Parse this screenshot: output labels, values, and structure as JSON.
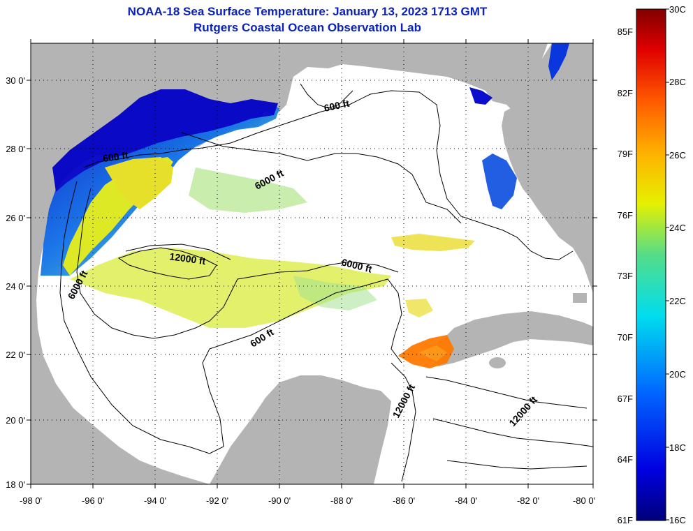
{
  "header": {
    "title_line1": "NOAA-18 Sea Surface Temperature:  January 13, 2023 1713 GMT",
    "title_line2": "Rutgers Coastal Ocean Observation Lab"
  },
  "map": {
    "lon_ticks": [
      "-98 0'",
      "-96 0'",
      "-94 0'",
      "-92 0'",
      "-90 0'",
      "-88 0'",
      "-86 0'",
      "-84 0'",
      "-82 0'",
      "-80 0'"
    ],
    "lat_ticks": [
      "30 0'",
      "28 0'",
      "26 0'",
      "24 0'",
      "22 0'",
      "20 0'",
      "18 0'"
    ],
    "contour_labels": {
      "c600_north": "600 ft",
      "c600_west": "600 ft",
      "c6000_north": "6000 ft",
      "c12000_west": "12000 ft",
      "c6000_central": "6000 ft",
      "c6000_west": "6000 ft",
      "c600_south": "600 ft",
      "c12000_south": "12000 ft",
      "c12000_east": "12000 ft"
    }
  },
  "colorbar": {
    "fahrenheit_labels": [
      "85F",
      "82F",
      "79F",
      "76F",
      "73F",
      "70F",
      "67F",
      "64F",
      "61F"
    ],
    "celsius_labels": [
      "30C",
      "28C",
      "26C",
      "24C",
      "22C",
      "20C",
      "18C",
      "16C"
    ]
  },
  "colors": {
    "title": "#0a22b8",
    "land": "#b4b4b4",
    "water": "#ffffff"
  }
}
